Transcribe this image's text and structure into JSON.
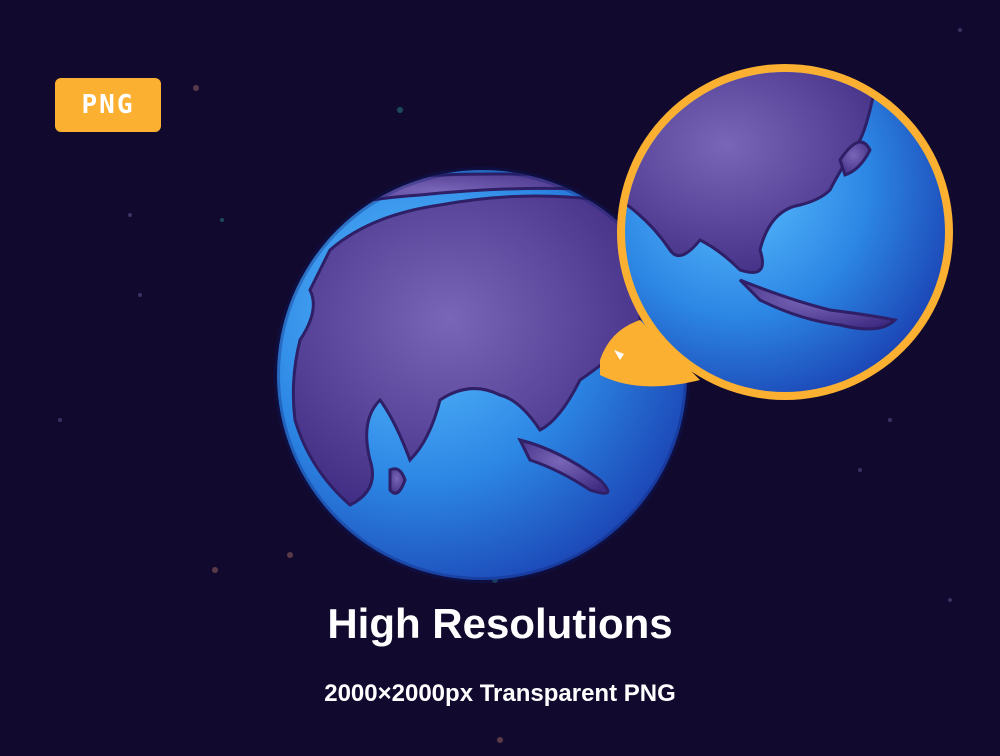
{
  "badge": {
    "label": "PNG",
    "color": "#fbb031"
  },
  "heading": "High Resolutions",
  "subheading": "2000×2000px Transparent PNG",
  "colors": {
    "background": "#110a2e",
    "ocean": "#2f8fe6",
    "land": "#4a3590",
    "magnifier_ring": "#fbb031"
  }
}
